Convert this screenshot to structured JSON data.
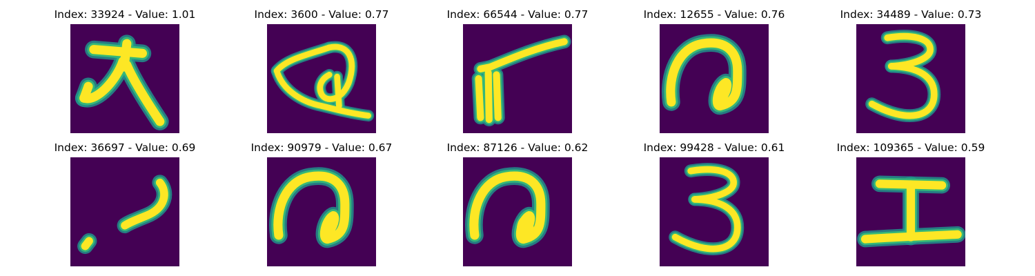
{
  "figure": {
    "layout": "2 rows x 5 columns grid of image panels",
    "colormap": "viridis",
    "colors": {
      "background": "#440154",
      "stroke_core": "#fde725",
      "stroke_edge": "#35b779",
      "stroke_halo": "#21918c"
    }
  },
  "chart_data": {
    "type": "image-grid",
    "panels": [
      {
        "index": 33924,
        "value": 1.01,
        "title": "Index: 33924 - Value: 1.01",
        "glyph": "大"
      },
      {
        "index": 3600,
        "value": 0.77,
        "title": "Index: 3600 - Value: 0.77",
        "glyph": "loop"
      },
      {
        "index": 66544,
        "value": 0.77,
        "title": "Index: 66544 - Value: 0.77",
        "glyph": "fork"
      },
      {
        "index": 12655,
        "value": 0.76,
        "title": "Index: 12655 - Value: 0.76",
        "glyph": "spiral"
      },
      {
        "index": 34489,
        "value": 0.73,
        "title": "Index: 34489 - Value: 0.73",
        "glyph": "3"
      },
      {
        "index": 36697,
        "value": 0.69,
        "title": "Index: 36697 - Value: 0.69",
        "glyph": "dot-hook"
      },
      {
        "index": 90979,
        "value": 0.67,
        "title": "Index: 90979 - Value: 0.67",
        "glyph": "spiral"
      },
      {
        "index": 87126,
        "value": 0.62,
        "title": "Index: 87126 - Value: 0.62",
        "glyph": "spiral"
      },
      {
        "index": 99428,
        "value": 0.61,
        "title": "Index: 99428 - Value: 0.61",
        "glyph": "3"
      },
      {
        "index": 109365,
        "value": 0.59,
        "title": "Index: 109365 - Value: 0.59",
        "glyph": "工"
      }
    ]
  }
}
